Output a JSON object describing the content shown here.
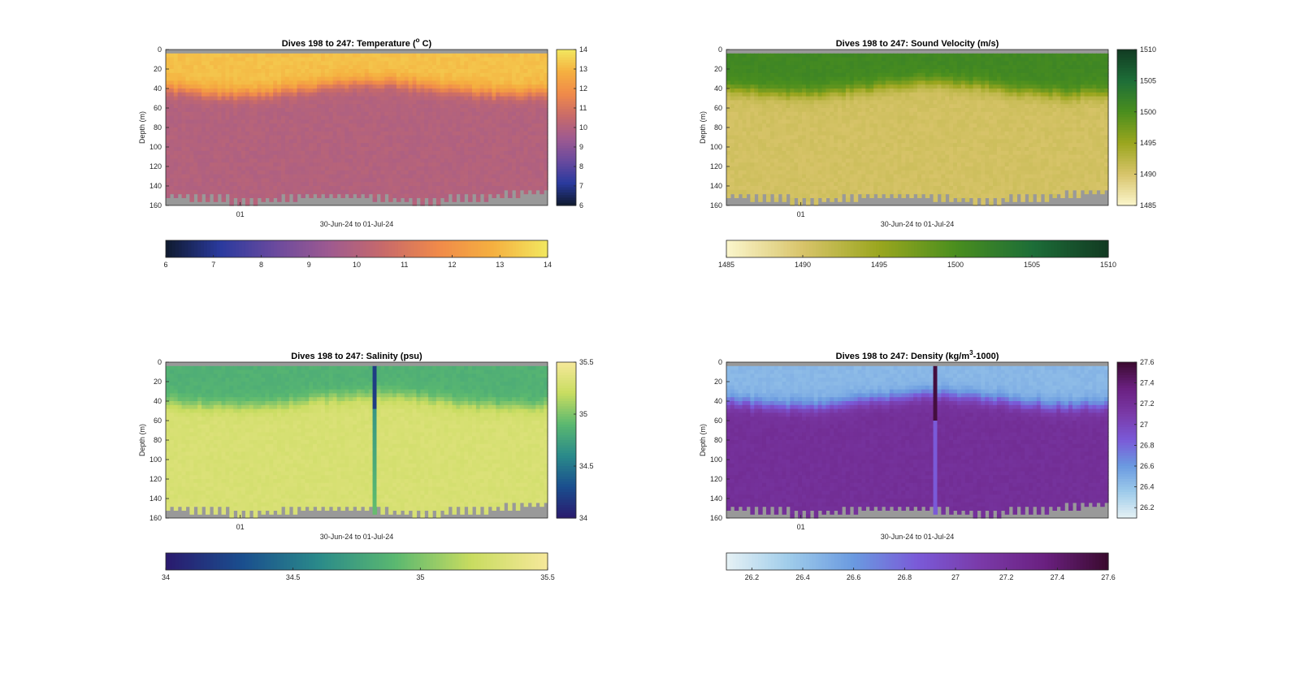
{
  "chart_data": [
    {
      "type": "heatmap",
      "title": "Dives 198 to 247: Temperature (°C)",
      "title_parts": {
        "prefix": "Dives 198 to 247: Temperature (",
        "sup": "o",
        "suffix": " C)"
      },
      "xlabel": "30-Jun-24 to 01-Jul-24",
      "ylabel": "Depth (m)",
      "x_ticks": [
        "01"
      ],
      "y_ticks": [
        0,
        20,
        40,
        60,
        80,
        100,
        120,
        140,
        160
      ],
      "ylim": [
        0,
        160
      ],
      "variable": "temperature",
      "upper_layer_value": 13.2,
      "lower_layer_value": 10.0,
      "mixed_layer_depth": 40,
      "colorbar_ticks": [
        "6",
        "7",
        "8",
        "9",
        "10",
        "11",
        "12",
        "13",
        "14"
      ],
      "colorbar_range": [
        6,
        14
      ],
      "colormap": [
        "#0f1a2e",
        "#2a3a9e",
        "#6a4a9e",
        "#9e5a90",
        "#c86a6a",
        "#f08a4a",
        "#f5b040",
        "#f2e860"
      ]
    },
    {
      "type": "heatmap",
      "title": "Dives 198 to 247: Sound Velocity (m/s)",
      "xlabel": "30-Jun-24 to 01-Jul-24",
      "ylabel": "Depth (m)",
      "x_ticks": [
        "01"
      ],
      "y_ticks": [
        0,
        20,
        40,
        60,
        80,
        100,
        120,
        140,
        160
      ],
      "ylim": [
        0,
        160
      ],
      "variable": "sound_velocity",
      "upper_layer_value": 1501,
      "lower_layer_value": 1490.5,
      "mixed_layer_depth": 40,
      "colorbar_ticks": [
        "1485",
        "1490",
        "1495",
        "1500",
        "1505",
        "1510"
      ],
      "colorbar_range": [
        1485,
        1510
      ],
      "colormap": [
        "#fbf6cc",
        "#d8c46a",
        "#9aa61e",
        "#4a8e1e",
        "#1d6e38",
        "#123a22"
      ]
    },
    {
      "type": "heatmap",
      "title": "Dives 198 to 247: Salinity (psu)",
      "xlabel": "30-Jun-24 to 01-Jul-24",
      "ylabel": "Depth (m)",
      "x_ticks": [
        "01"
      ],
      "y_ticks": [
        0,
        20,
        40,
        60,
        80,
        100,
        120,
        140,
        160
      ],
      "ylim": [
        0,
        160
      ],
      "variable": "salinity",
      "upper_layer_value": 34.85,
      "lower_layer_value": 35.3,
      "mixed_layer_depth": 40,
      "colorbar_ticks": [
        "34",
        "34.5",
        "35",
        "35.5"
      ],
      "colorbar_range": [
        34,
        35.5
      ],
      "colormap": [
        "#2a1a6e",
        "#1a4e8e",
        "#2a8a8a",
        "#5ab870",
        "#c8dc60",
        "#f6e89a"
      ]
    },
    {
      "type": "heatmap",
      "title": "Dives 198 to 247: Density (kg/m³-1000)",
      "title_parts": {
        "prefix": "Dives 198 to 247: Density (kg/m",
        "sup": "3",
        "suffix": "-1000)"
      },
      "xlabel": "30-Jun-24 to 01-Jul-24",
      "ylabel": "Depth (m)",
      "x_ticks": [
        "01"
      ],
      "y_ticks": [
        0,
        20,
        40,
        60,
        80,
        100,
        120,
        140,
        160
      ],
      "ylim": [
        0,
        160
      ],
      "variable": "density",
      "upper_layer_value": 26.45,
      "lower_layer_value": 27.2,
      "mixed_layer_depth": 40,
      "colorbar_ticks": [
        "26.2",
        "26.4",
        "26.6",
        "26.8",
        "27",
        "27.2",
        "27.4",
        "27.6"
      ],
      "colorbar_range": [
        26.1,
        27.6
      ],
      "colormap": [
        "#e6f2f5",
        "#9ecbea",
        "#6a9ae0",
        "#7a5ad8",
        "#7a3aa8",
        "#6a2080",
        "#3a0a2e"
      ]
    }
  ],
  "colors": {
    "missing_data": "#999999",
    "frame": "#262626"
  }
}
